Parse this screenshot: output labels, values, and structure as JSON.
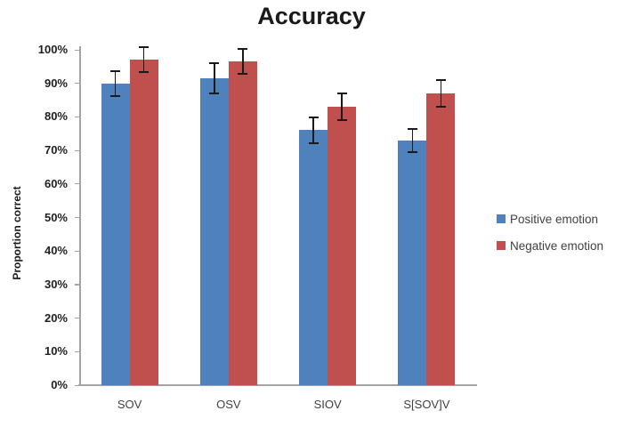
{
  "title": "Accuracy",
  "chart_data": {
    "type": "bar",
    "title": "Accuracy",
    "xlabel": "",
    "ylabel": "Proportion correct",
    "categories": [
      "SOV",
      "OSV",
      "SIOV",
      "S[SOV]V"
    ],
    "series": [
      {
        "name": "Positive emotion",
        "color": "#4f81bd",
        "values": [
          90,
          91.5,
          76,
          73
        ],
        "errors": [
          4,
          4.7,
          4,
          3.7
        ]
      },
      {
        "name": "Negative emotion",
        "color": "#c0504d",
        "values": [
          97,
          96.5,
          83,
          87
        ],
        "errors": [
          4,
          4,
          4.2,
          4.3
        ]
      }
    ],
    "ylim": [
      0,
      100
    ],
    "ytick_step": 10,
    "ytick_labels": [
      "0%",
      "10%",
      "20%",
      "30%",
      "40%",
      "50%",
      "60%",
      "70%",
      "80%",
      "90%",
      "100%"
    ],
    "grid": false,
    "error_bars": true,
    "legend_position": "right"
  },
  "colors": {
    "positive_series": "#4f81bd",
    "negative_series": "#c0504d",
    "axis_line": "#a3a3a3",
    "error_bar": "#1a1a1a",
    "title_text": "#1a1a1a",
    "tick_text": "#1f1f1f",
    "category_text": "#404040",
    "background": "#ffffff"
  }
}
